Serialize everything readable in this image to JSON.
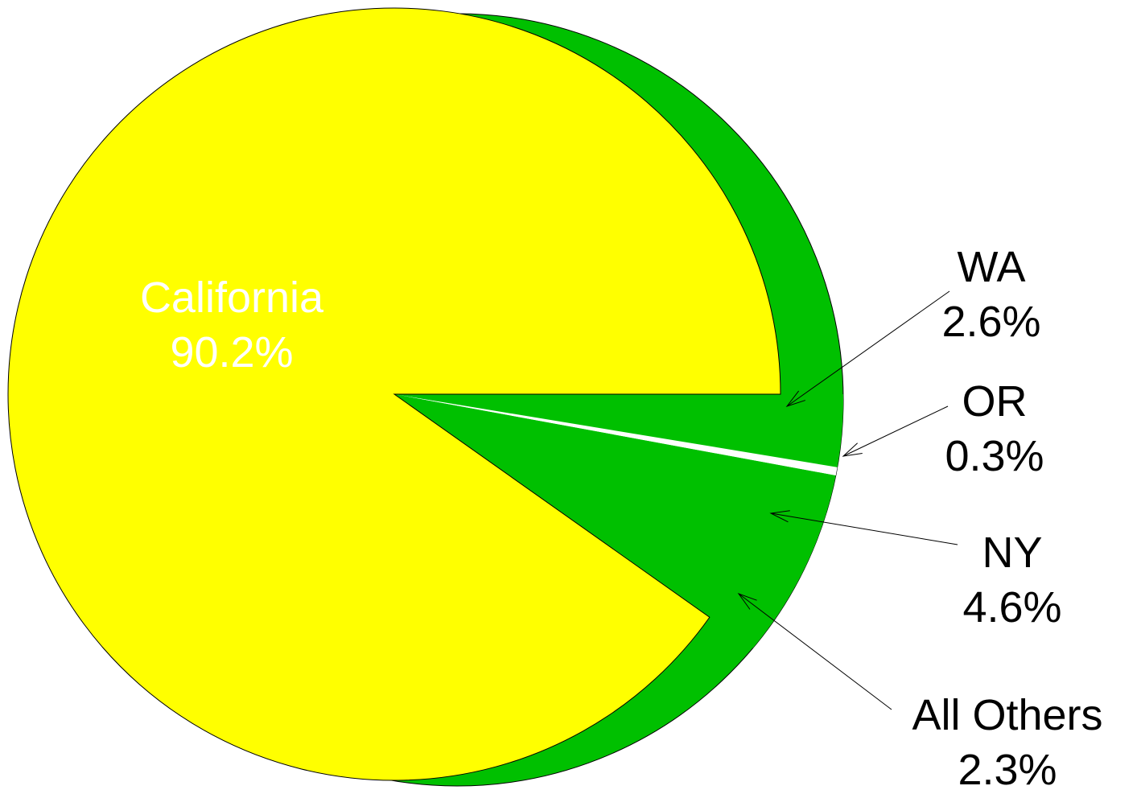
{
  "chart_data": {
    "type": "pie",
    "categories": [
      "WA",
      "OR",
      "NY",
      "All Others",
      "California"
    ],
    "values": [
      2.6,
      0.3,
      4.6,
      2.3,
      90.2
    ],
    "value_labels": [
      "2.6%",
      "0.3%",
      "4.6%",
      "2.3%",
      "90.2%"
    ],
    "colors": [
      "#00c000",
      "#ffffff",
      "#00c000",
      "#00c000",
      "#ffff00"
    ]
  }
}
